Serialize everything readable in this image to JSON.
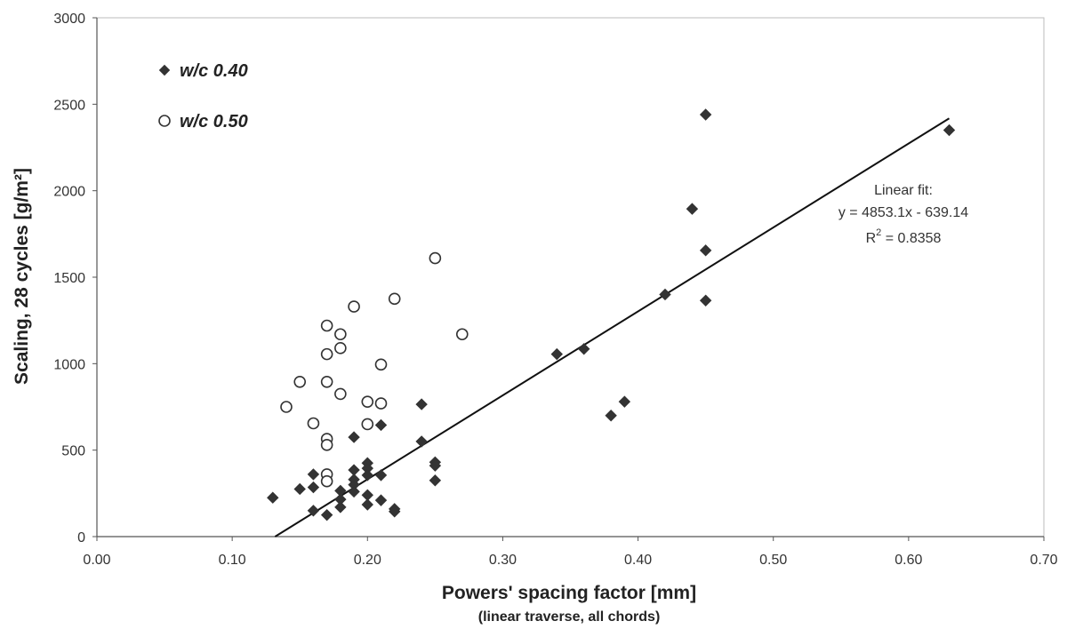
{
  "chart_data": {
    "type": "scatter",
    "xlabel": "Powers' spacing factor [mm]",
    "xlabel_sub": "(linear traverse, all chords)",
    "ylabel": "Scaling, 28 cycles [g/m²]",
    "xlim": [
      0.0,
      0.7
    ],
    "ylim": [
      0,
      3000
    ],
    "x_ticks": [
      "0.00",
      "0.10",
      "0.20",
      "0.30",
      "0.40",
      "0.50",
      "0.60",
      "0.70"
    ],
    "y_ticks": [
      "0",
      "500",
      "1000",
      "1500",
      "2000",
      "2500",
      "3000"
    ],
    "legend_position": "top-left",
    "grid": false,
    "series": [
      {
        "name": "w/c 0.40",
        "marker": "filled-diamond",
        "color": "#333333",
        "points": [
          [
            0.13,
            225
          ],
          [
            0.15,
            275
          ],
          [
            0.16,
            360
          ],
          [
            0.16,
            285
          ],
          [
            0.16,
            150
          ],
          [
            0.17,
            125
          ],
          [
            0.18,
            265
          ],
          [
            0.18,
            215
          ],
          [
            0.18,
            170
          ],
          [
            0.19,
            575
          ],
          [
            0.19,
            385
          ],
          [
            0.19,
            330
          ],
          [
            0.19,
            300
          ],
          [
            0.19,
            260
          ],
          [
            0.2,
            425
          ],
          [
            0.2,
            395
          ],
          [
            0.2,
            355
          ],
          [
            0.2,
            240
          ],
          [
            0.2,
            185
          ],
          [
            0.21,
            645
          ],
          [
            0.21,
            355
          ],
          [
            0.21,
            210
          ],
          [
            0.22,
            160
          ],
          [
            0.22,
            145
          ],
          [
            0.24,
            765
          ],
          [
            0.24,
            550
          ],
          [
            0.25,
            430
          ],
          [
            0.25,
            410
          ],
          [
            0.25,
            325
          ],
          [
            0.34,
            1055
          ],
          [
            0.36,
            1085
          ],
          [
            0.38,
            700
          ],
          [
            0.39,
            780
          ],
          [
            0.42,
            1400
          ],
          [
            0.44,
            1895
          ],
          [
            0.45,
            2440
          ],
          [
            0.45,
            1655
          ],
          [
            0.45,
            1365
          ],
          [
            0.63,
            2350
          ]
        ]
      },
      {
        "name": "w/c 0.50",
        "marker": "open-circle",
        "color": "#333333",
        "points": [
          [
            0.14,
            750
          ],
          [
            0.15,
            895
          ],
          [
            0.16,
            655
          ],
          [
            0.17,
            1220
          ],
          [
            0.17,
            1055
          ],
          [
            0.17,
            895
          ],
          [
            0.17,
            565
          ],
          [
            0.17,
            530
          ],
          [
            0.17,
            360
          ],
          [
            0.17,
            320
          ],
          [
            0.18,
            1170
          ],
          [
            0.18,
            1090
          ],
          [
            0.18,
            825
          ],
          [
            0.19,
            1330
          ],
          [
            0.2,
            780
          ],
          [
            0.2,
            650
          ],
          [
            0.21,
            995
          ],
          [
            0.21,
            770
          ],
          [
            0.22,
            1375
          ],
          [
            0.25,
            1610
          ],
          [
            0.27,
            1170
          ]
        ]
      }
    ],
    "fit": {
      "label": "Linear fit:",
      "equation": "y = 4853.1x - 639.14",
      "r2_label": "R",
      "r2_sup": "2",
      "r2_value": " = 0.8358",
      "slope": 4853.1,
      "intercept": -639.14,
      "x_range": [
        0.1317,
        0.63
      ]
    }
  }
}
